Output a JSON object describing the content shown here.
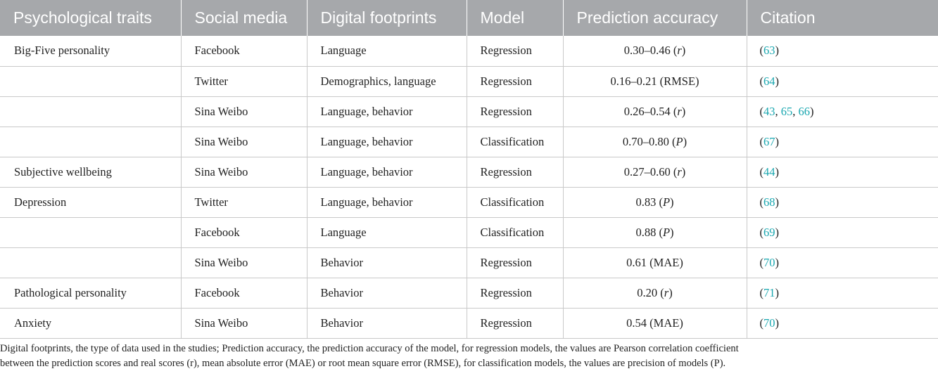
{
  "table": {
    "headers": [
      "Psychological traits",
      "Social media",
      "Digital footprints",
      "Model",
      "Prediction accuracy",
      "Citation"
    ],
    "rows": [
      {
        "trait": "Big-Five personality",
        "media": "Facebook",
        "footprints": "Language",
        "model": "Regression",
        "accuracy": {
          "value": "0.30–0.46",
          "unit": "r",
          "unit_italic": true
        },
        "citations": [
          "63"
        ]
      },
      {
        "trait": "",
        "media": "Twitter",
        "footprints": "Demographics, language",
        "model": "Regression",
        "accuracy": {
          "value": "0.16–0.21",
          "unit": "RMSE",
          "unit_italic": false
        },
        "citations": [
          "64"
        ]
      },
      {
        "trait": "",
        "media": "Sina Weibo",
        "footprints": "Language, behavior",
        "model": "Regression",
        "accuracy": {
          "value": "0.26–0.54",
          "unit": "r",
          "unit_italic": true
        },
        "citations": [
          "43",
          "65",
          "66"
        ]
      },
      {
        "trait": "",
        "media": "Sina Weibo",
        "footprints": "Language, behavior",
        "model": "Classification",
        "accuracy": {
          "value": "0.70–0.80",
          "unit": "P",
          "unit_italic": true
        },
        "citations": [
          "67"
        ]
      },
      {
        "trait": "Subjective wellbeing",
        "media": "Sina Weibo",
        "footprints": "Language, behavior",
        "model": "Regression",
        "accuracy": {
          "value": "0.27–0.60",
          "unit": "r",
          "unit_italic": true
        },
        "citations": [
          "44"
        ]
      },
      {
        "trait": "Depression",
        "media": "Twitter",
        "footprints": "Language, behavior",
        "model": "Classification",
        "accuracy": {
          "value": "0.83",
          "unit": "P",
          "unit_italic": true
        },
        "citations": [
          "68"
        ]
      },
      {
        "trait": "",
        "media": "Facebook",
        "footprints": "Language",
        "model": "Classification",
        "accuracy": {
          "value": "0.88",
          "unit": "P",
          "unit_italic": true
        },
        "citations": [
          "69"
        ]
      },
      {
        "trait": "",
        "media": "Sina Weibo",
        "footprints": "Behavior",
        "model": "Regression",
        "accuracy": {
          "value": "0.61",
          "unit": "MAE",
          "unit_italic": false
        },
        "citations": [
          "70"
        ]
      },
      {
        "trait": "Pathological personality",
        "media": "Facebook",
        "footprints": "Behavior",
        "model": "Regression",
        "accuracy": {
          "value": "0.20",
          "unit": "r",
          "unit_italic": true
        },
        "citations": [
          "71"
        ]
      },
      {
        "trait": "Anxiety",
        "media": "Sina Weibo",
        "footprints": "Behavior",
        "model": "Regression",
        "accuracy": {
          "value": "0.54",
          "unit": "MAE",
          "unit_italic": false
        },
        "citations": [
          "70"
        ]
      }
    ]
  },
  "footnote": {
    "line1": "Digital footprints, the type of data used in the studies; Prediction accuracy, the prediction accuracy of the model, for regression models, the values are Pearson correlation coefficient",
    "line2": "between the prediction scores and real scores (r), mean absolute error (MAE) or root mean square error (RMSE), for classification models, the values are precision of models (P)."
  },
  "colors": {
    "header_bg": "#a6a8ab",
    "header_text": "#ffffff",
    "link": "#1aa7b0",
    "row_border": "#c9c9c9"
  }
}
